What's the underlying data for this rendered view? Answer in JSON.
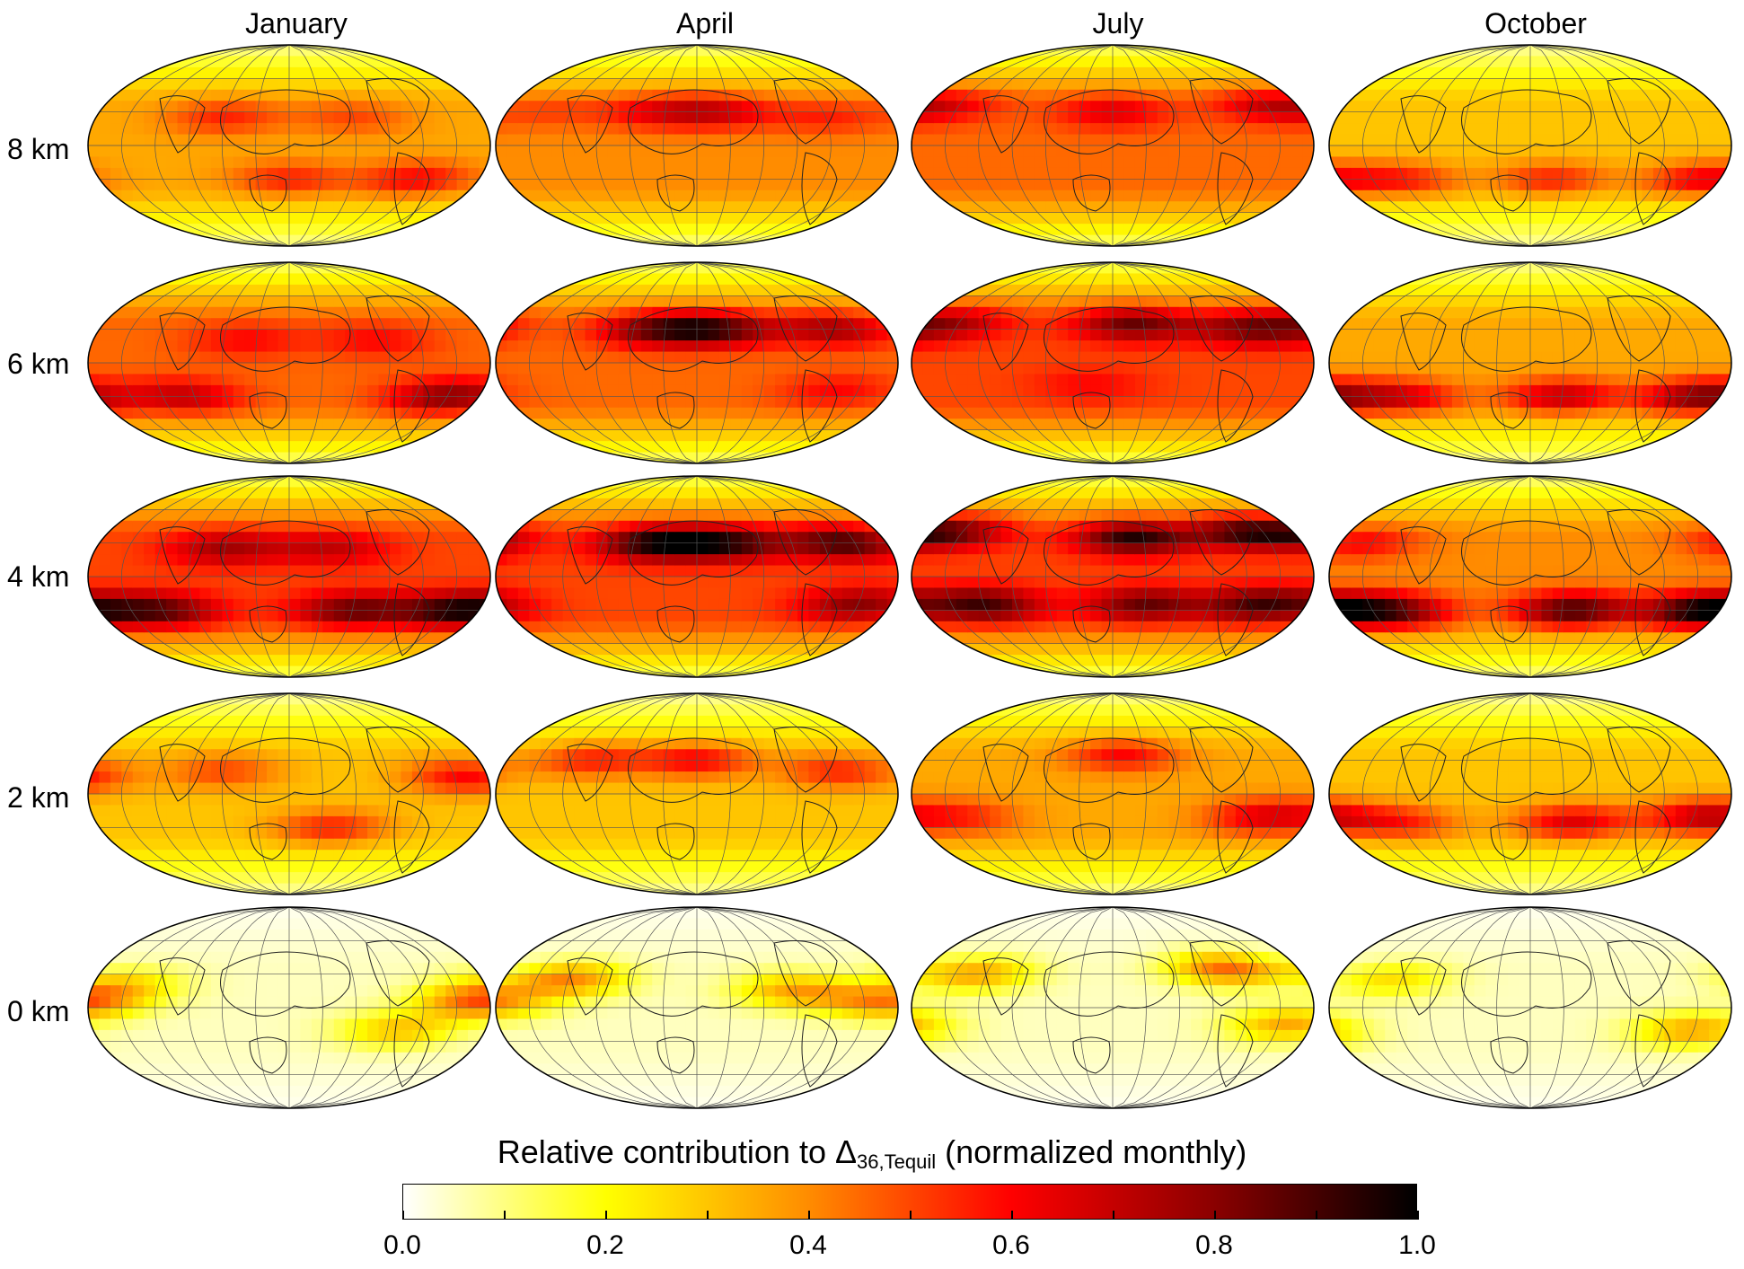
{
  "columns": [
    "January",
    "April",
    "July",
    "October"
  ],
  "rows": [
    "8 km",
    "6 km",
    "4 km",
    "2 km",
    "0 km"
  ],
  "colorbar": {
    "title_main": "Relative contribution to Δ",
    "title_sub": "36,Tequil",
    "title_suffix": " (normalized monthly)",
    "ticks": [
      "0.0",
      "0.2",
      "0.4",
      "0.6",
      "0.8",
      "1.0"
    ],
    "range": [
      0,
      1
    ],
    "colors": [
      "#ffffff",
      "#ffff00",
      "#ff8c00",
      "#ff0000",
      "#8b0000",
      "#000000"
    ]
  },
  "maps": [
    [
      {
        "base": 0.35,
        "blobs": [
          {
            "lon": -60,
            "lat": 25,
            "v": 0.55
          },
          {
            "lon": 60,
            "lat": 25,
            "v": 0.5
          },
          {
            "lon": 0,
            "lat": -30,
            "v": 0.55
          },
          {
            "lon": 120,
            "lat": -30,
            "v": 0.6
          }
        ]
      },
      {
        "base": 0.45,
        "blobs": [
          {
            "lon": -40,
            "lat": 20,
            "v": 0.6
          },
          {
            "lon": 80,
            "lat": 20,
            "v": 0.6
          },
          {
            "lon": -100,
            "lat": -30,
            "v": 0.7
          },
          {
            "lon": 150,
            "lat": -30,
            "v": 0.8
          }
        ]
      },
      {
        "base": 0.5,
        "blobs": [
          {
            "lon": -60,
            "lat": 25,
            "v": 0.75
          },
          {
            "lon": 40,
            "lat": 25,
            "v": 0.7
          },
          {
            "lon": -120,
            "lat": -30,
            "v": 0.85
          },
          {
            "lon": 60,
            "lat": -30,
            "v": 0.85
          },
          {
            "lon": 160,
            "lat": -30,
            "v": 0.95
          }
        ]
      },
      {
        "base": 0.3,
        "blobs": [
          {
            "lon": -60,
            "lat": 20,
            "v": 0.5
          },
          {
            "lon": 40,
            "lat": -30,
            "v": 0.55
          },
          {
            "lon": 160,
            "lat": 15,
            "v": 0.6
          }
        ]
      },
      {
        "base": 0.05,
        "blobs": [
          {
            "lon": -150,
            "lat": 20,
            "v": 0.25
          },
          {
            "lon": 100,
            "lat": -20,
            "v": 0.3
          },
          {
            "lon": 170,
            "lat": 5,
            "v": 0.45
          }
        ]
      }
    ],
    [
      {
        "base": 0.4,
        "blobs": [
          {
            "lon": -40,
            "lat": 30,
            "v": 0.6
          },
          {
            "lon": 20,
            "lat": 30,
            "v": 0.65
          },
          {
            "lon": 120,
            "lat": 25,
            "v": 0.55
          },
          {
            "lon": -140,
            "lat": 30,
            "v": 0.5
          }
        ]
      },
      {
        "base": 0.45,
        "blobs": [
          {
            "lon": -40,
            "lat": 30,
            "v": 0.8
          },
          {
            "lon": 20,
            "lat": 30,
            "v": 0.85
          },
          {
            "lon": 130,
            "lat": 30,
            "v": 0.75
          },
          {
            "lon": 130,
            "lat": -25,
            "v": 0.6
          }
        ]
      },
      {
        "base": 0.5,
        "blobs": [
          {
            "lon": -40,
            "lat": 30,
            "v": 0.95
          },
          {
            "lon": 30,
            "lat": 30,
            "v": 0.9
          },
          {
            "lon": 140,
            "lat": 30,
            "v": 0.9
          },
          {
            "lon": 150,
            "lat": -25,
            "v": 0.8
          }
        ]
      },
      {
        "base": 0.3,
        "blobs": [
          {
            "lon": -100,
            "lat": 30,
            "v": 0.55
          },
          {
            "lon": 0,
            "lat": 30,
            "v": 0.6
          },
          {
            "lon": 130,
            "lat": 20,
            "v": 0.55
          }
        ]
      },
      {
        "base": 0.05,
        "blobs": [
          {
            "lon": -120,
            "lat": 25,
            "v": 0.4
          },
          {
            "lon": 90,
            "lat": 15,
            "v": 0.35
          },
          {
            "lon": 170,
            "lat": 5,
            "v": 0.4
          }
        ]
      }
    ],
    [
      {
        "base": 0.45,
        "blobs": [
          {
            "lon": -160,
            "lat": 35,
            "v": 0.6
          },
          {
            "lon": 0,
            "lat": 30,
            "v": 0.65
          },
          {
            "lon": 150,
            "lat": 35,
            "v": 0.65
          }
        ]
      },
      {
        "base": 0.5,
        "blobs": [
          {
            "lon": -160,
            "lat": 35,
            "v": 0.75
          },
          {
            "lon": 20,
            "lat": 35,
            "v": 0.85
          },
          {
            "lon": 130,
            "lat": 30,
            "v": 0.8
          },
          {
            "lon": -20,
            "lat": -20,
            "v": 0.6
          }
        ]
      },
      {
        "base": 0.5,
        "blobs": [
          {
            "lon": -160,
            "lat": 40,
            "v": 0.85
          },
          {
            "lon": 20,
            "lat": 35,
            "v": 0.95
          },
          {
            "lon": 130,
            "lat": 40,
            "v": 0.9
          },
          {
            "lon": -120,
            "lat": -25,
            "v": 0.9
          },
          {
            "lon": 30,
            "lat": -25,
            "v": 0.85
          },
          {
            "lon": 140,
            "lat": -25,
            "v": 0.9
          }
        ]
      },
      {
        "base": 0.35,
        "blobs": [
          {
            "lon": 10,
            "lat": 35,
            "v": 0.6
          },
          {
            "lon": 140,
            "lat": -20,
            "v": 0.65
          },
          {
            "lon": -140,
            "lat": -20,
            "v": 0.55
          }
        ]
      },
      {
        "base": 0.05,
        "blobs": [
          {
            "lon": -130,
            "lat": 30,
            "v": 0.35
          },
          {
            "lon": 110,
            "lat": 35,
            "v": 0.45
          },
          {
            "lon": 160,
            "lat": -15,
            "v": 0.35
          }
        ]
      }
    ],
    [
      {
        "base": 0.3,
        "blobs": [
          {
            "lon": -120,
            "lat": -30,
            "v": 0.55
          },
          {
            "lon": 20,
            "lat": -30,
            "v": 0.55
          },
          {
            "lon": 160,
            "lat": -30,
            "v": 0.6
          }
        ]
      },
      {
        "base": 0.35,
        "blobs": [
          {
            "lon": -120,
            "lat": -30,
            "v": 0.65
          },
          {
            "lon": 30,
            "lat": -30,
            "v": 0.7
          },
          {
            "lon": 160,
            "lat": -30,
            "v": 0.8
          }
        ]
      },
      {
        "base": 0.4,
        "blobs": [
          {
            "lon": -130,
            "lat": -30,
            "v": 0.85
          },
          {
            "lon": 40,
            "lat": -30,
            "v": 0.9
          },
          {
            "lon": 160,
            "lat": -30,
            "v": 0.95
          },
          {
            "lon": -160,
            "lat": 30,
            "v": 0.6
          }
        ]
      },
      {
        "base": 0.3,
        "blobs": [
          {
            "lon": -120,
            "lat": -25,
            "v": 0.55
          },
          {
            "lon": 40,
            "lat": -25,
            "v": 0.65
          },
          {
            "lon": 160,
            "lat": -20,
            "v": 0.7
          }
        ]
      },
      {
        "base": 0.05,
        "blobs": [
          {
            "lon": -130,
            "lat": 25,
            "v": 0.25
          },
          {
            "lon": 150,
            "lat": -20,
            "v": 0.35
          }
        ]
      }
    ]
  ]
}
